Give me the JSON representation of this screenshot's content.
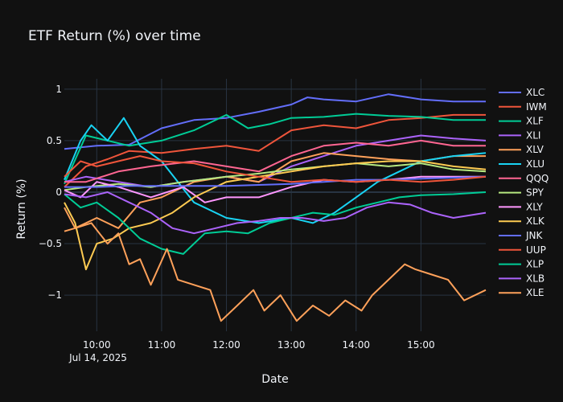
{
  "chart_data": {
    "type": "line",
    "title": "ETF Return (%) over time",
    "xlabel": "Date",
    "ylabel": "Return (%)",
    "date_annotation": "Jul 14, 2025",
    "x_ticks": [
      "10:00",
      "11:00",
      "12:00",
      "13:00",
      "14:00",
      "15:00"
    ],
    "x_tick_minutes": [
      600,
      660,
      720,
      780,
      840,
      900
    ],
    "x_range_minutes": [
      570,
      960
    ],
    "ylim": [
      -1.35,
      1.1
    ],
    "y_ticks": [
      1,
      0.5,
      0,
      -0.5,
      -1
    ],
    "y_tick_labels": [
      "1",
      "0.5",
      "0",
      "−0.5",
      "−1"
    ],
    "grid": true,
    "legend_position": "right",
    "background": "#111111",
    "grid_color": "#283442",
    "series": [
      {
        "name": "XLC",
        "color": "#636efa",
        "values": [
          [
            570,
            0.42
          ],
          [
            600,
            0.45
          ],
          [
            630,
            0.46
          ],
          [
            660,
            0.62
          ],
          [
            690,
            0.7
          ],
          [
            720,
            0.72
          ],
          [
            750,
            0.78
          ],
          [
            780,
            0.85
          ],
          [
            795,
            0.92
          ],
          [
            810,
            0.9
          ],
          [
            840,
            0.88
          ],
          [
            870,
            0.95
          ],
          [
            900,
            0.9
          ],
          [
            930,
            0.88
          ],
          [
            960,
            0.88
          ]
        ]
      },
      {
        "name": "IWM",
        "color": "#ef553b",
        "values": [
          [
            570,
            0.05
          ],
          [
            590,
            0.25
          ],
          [
            610,
            0.32
          ],
          [
            630,
            0.4
          ],
          [
            660,
            0.38
          ],
          [
            690,
            0.42
          ],
          [
            720,
            0.45
          ],
          [
            750,
            0.4
          ],
          [
            780,
            0.6
          ],
          [
            810,
            0.65
          ],
          [
            840,
            0.62
          ],
          [
            870,
            0.7
          ],
          [
            900,
            0.72
          ],
          [
            930,
            0.75
          ],
          [
            960,
            0.75
          ]
        ]
      },
      {
        "name": "XLF",
        "color": "#00cc96",
        "values": [
          [
            570,
            0.08
          ],
          [
            590,
            0.55
          ],
          [
            610,
            0.5
          ],
          [
            630,
            0.45
          ],
          [
            660,
            0.5
          ],
          [
            690,
            0.6
          ],
          [
            720,
            0.75
          ],
          [
            740,
            0.62
          ],
          [
            760,
            0.66
          ],
          [
            780,
            0.72
          ],
          [
            810,
            0.73
          ],
          [
            840,
            0.76
          ],
          [
            870,
            0.74
          ],
          [
            900,
            0.73
          ],
          [
            930,
            0.7
          ],
          [
            960,
            0.7
          ]
        ]
      },
      {
        "name": "XLI",
        "color": "#ab63fa",
        "values": [
          [
            570,
            0.1
          ],
          [
            590,
            0.15
          ],
          [
            620,
            0.1
          ],
          [
            650,
            0.05
          ],
          [
            680,
            0.1
          ],
          [
            720,
            0.15
          ],
          [
            750,
            0.1
          ],
          [
            780,
            0.25
          ],
          [
            810,
            0.35
          ],
          [
            840,
            0.45
          ],
          [
            870,
            0.5
          ],
          [
            900,
            0.55
          ],
          [
            930,
            0.52
          ],
          [
            960,
            0.5
          ]
        ]
      },
      {
        "name": "XLV",
        "color": "#ffa15a",
        "values": [
          [
            570,
            -0.38
          ],
          [
            580,
            -0.35
          ],
          [
            600,
            -0.25
          ],
          [
            620,
            -0.35
          ],
          [
            640,
            -0.1
          ],
          [
            660,
            -0.05
          ],
          [
            690,
            0.1
          ],
          [
            720,
            0.15
          ],
          [
            750,
            0.1
          ],
          [
            780,
            0.3
          ],
          [
            810,
            0.38
          ],
          [
            840,
            0.35
          ],
          [
            870,
            0.32
          ],
          [
            900,
            0.3
          ],
          [
            930,
            0.35
          ],
          [
            960,
            0.35
          ]
        ]
      },
      {
        "name": "XLU",
        "color": "#19d3f3",
        "values": [
          [
            570,
            0.12
          ],
          [
            585,
            0.5
          ],
          [
            595,
            0.65
          ],
          [
            610,
            0.5
          ],
          [
            625,
            0.72
          ],
          [
            640,
            0.45
          ],
          [
            660,
            0.3
          ],
          [
            690,
            -0.1
          ],
          [
            720,
            -0.25
          ],
          [
            750,
            -0.3
          ],
          [
            780,
            -0.25
          ],
          [
            800,
            -0.3
          ],
          [
            820,
            -0.2
          ],
          [
            840,
            -0.05
          ],
          [
            860,
            0.1
          ],
          [
            880,
            0.2
          ],
          [
            900,
            0.3
          ],
          [
            930,
            0.35
          ],
          [
            960,
            0.38
          ]
        ]
      },
      {
        "name": "QQQ",
        "color": "#ff6692",
        "values": [
          [
            570,
            0.1
          ],
          [
            590,
            0.1
          ],
          [
            620,
            0.2
          ],
          [
            650,
            0.25
          ],
          [
            690,
            0.3
          ],
          [
            720,
            0.25
          ],
          [
            750,
            0.2
          ],
          [
            780,
            0.35
          ],
          [
            810,
            0.45
          ],
          [
            840,
            0.48
          ],
          [
            870,
            0.45
          ],
          [
            900,
            0.5
          ],
          [
            930,
            0.45
          ],
          [
            960,
            0.45
          ]
        ]
      },
      {
        "name": "SPY",
        "color": "#b6e880",
        "values": [
          [
            570,
            0.02
          ],
          [
            590,
            0.05
          ],
          [
            620,
            0.08
          ],
          [
            650,
            0.05
          ],
          [
            680,
            0.1
          ],
          [
            720,
            0.15
          ],
          [
            750,
            0.18
          ],
          [
            780,
            0.22
          ],
          [
            810,
            0.25
          ],
          [
            840,
            0.28
          ],
          [
            870,
            0.25
          ],
          [
            900,
            0.28
          ],
          [
            930,
            0.22
          ],
          [
            960,
            0.2
          ]
        ]
      },
      {
        "name": "XLY",
        "color": "#ff97ff",
        "values": [
          [
            570,
            0.02
          ],
          [
            585,
            -0.05
          ],
          [
            600,
            0.1
          ],
          [
            620,
            0.05
          ],
          [
            650,
            -0.05
          ],
          [
            680,
            0.05
          ],
          [
            700,
            -0.1
          ],
          [
            720,
            -0.05
          ],
          [
            750,
            -0.05
          ],
          [
            780,
            0.05
          ],
          [
            810,
            0.12
          ],
          [
            840,
            0.1
          ],
          [
            870,
            0.12
          ],
          [
            900,
            0.15
          ],
          [
            930,
            0.15
          ],
          [
            960,
            0.15
          ]
        ]
      },
      {
        "name": "XLK",
        "color": "#fecb52",
        "values": [
          [
            570,
            -0.1
          ],
          [
            580,
            -0.3
          ],
          [
            590,
            -0.75
          ],
          [
            600,
            -0.5
          ],
          [
            615,
            -0.45
          ],
          [
            630,
            -0.35
          ],
          [
            650,
            -0.3
          ],
          [
            670,
            -0.2
          ],
          [
            690,
            -0.05
          ],
          [
            720,
            0.1
          ],
          [
            750,
            0.15
          ],
          [
            780,
            0.2
          ],
          [
            810,
            0.25
          ],
          [
            840,
            0.28
          ],
          [
            870,
            0.3
          ],
          [
            900,
            0.3
          ],
          [
            930,
            0.25
          ],
          [
            960,
            0.22
          ]
        ]
      },
      {
        "name": "JNK",
        "color": "#636efa",
        "values": [
          [
            570,
            0.05
          ],
          [
            600,
            0.05
          ],
          [
            630,
            0.06
          ],
          [
            660,
            0.06
          ],
          [
            690,
            0.06
          ],
          [
            720,
            0.06
          ],
          [
            750,
            0.07
          ],
          [
            780,
            0.08
          ],
          [
            810,
            0.1
          ],
          [
            840,
            0.12
          ],
          [
            870,
            0.12
          ],
          [
            900,
            0.13
          ],
          [
            930,
            0.14
          ],
          [
            960,
            0.15
          ]
        ]
      },
      {
        "name": "UUP",
        "color": "#ef553b",
        "values": [
          [
            570,
            0.15
          ],
          [
            585,
            0.3
          ],
          [
            600,
            0.25
          ],
          [
            620,
            0.3
          ],
          [
            640,
            0.35
          ],
          [
            660,
            0.3
          ],
          [
            690,
            0.28
          ],
          [
            720,
            0.2
          ],
          [
            750,
            0.15
          ],
          [
            780,
            0.1
          ],
          [
            810,
            0.12
          ],
          [
            840,
            0.1
          ],
          [
            870,
            0.12
          ],
          [
            900,
            0.1
          ],
          [
            930,
            0.12
          ],
          [
            960,
            0.15
          ]
        ]
      },
      {
        "name": "XLP",
        "color": "#00cc96",
        "values": [
          [
            570,
            -0.02
          ],
          [
            585,
            -0.15
          ],
          [
            600,
            -0.1
          ],
          [
            620,
            -0.25
          ],
          [
            640,
            -0.45
          ],
          [
            660,
            -0.55
          ],
          [
            680,
            -0.6
          ],
          [
            700,
            -0.4
          ],
          [
            720,
            -0.38
          ],
          [
            740,
            -0.4
          ],
          [
            760,
            -0.3
          ],
          [
            780,
            -0.25
          ],
          [
            800,
            -0.2
          ],
          [
            820,
            -0.22
          ],
          [
            840,
            -0.15
          ],
          [
            860,
            -0.1
          ],
          [
            880,
            -0.05
          ],
          [
            900,
            -0.03
          ],
          [
            930,
            -0.02
          ],
          [
            960,
            0.0
          ]
        ]
      },
      {
        "name": "XLB",
        "color": "#ab63fa",
        "values": [
          [
            570,
            -0.02
          ],
          [
            590,
            -0.05
          ],
          [
            610,
            0.0
          ],
          [
            630,
            -0.1
          ],
          [
            650,
            -0.2
          ],
          [
            670,
            -0.35
          ],
          [
            690,
            -0.4
          ],
          [
            710,
            -0.35
          ],
          [
            730,
            -0.3
          ],
          [
            750,
            -0.28
          ],
          [
            770,
            -0.25
          ],
          [
            790,
            -0.25
          ],
          [
            810,
            -0.28
          ],
          [
            830,
            -0.25
          ],
          [
            850,
            -0.15
          ],
          [
            870,
            -0.1
          ],
          [
            890,
            -0.12
          ],
          [
            910,
            -0.2
          ],
          [
            930,
            -0.25
          ],
          [
            960,
            -0.2
          ]
        ]
      },
      {
        "name": "XLE",
        "color": "#ffa15a",
        "values": [
          [
            570,
            -0.15
          ],
          [
            580,
            -0.35
          ],
          [
            595,
            -0.3
          ],
          [
            610,
            -0.5
          ],
          [
            620,
            -0.4
          ],
          [
            630,
            -0.7
          ],
          [
            640,
            -0.65
          ],
          [
            650,
            -0.9
          ],
          [
            665,
            -0.55
          ],
          [
            675,
            -0.85
          ],
          [
            690,
            -0.9
          ],
          [
            705,
            -0.95
          ],
          [
            715,
            -1.25
          ],
          [
            730,
            -1.1
          ],
          [
            745,
            -0.95
          ],
          [
            755,
            -1.15
          ],
          [
            770,
            -1.0
          ],
          [
            785,
            -1.25
          ],
          [
            800,
            -1.1
          ],
          [
            815,
            -1.2
          ],
          [
            830,
            -1.05
          ],
          [
            845,
            -1.15
          ],
          [
            855,
            -1.0
          ],
          [
            870,
            -0.85
          ],
          [
            885,
            -0.7
          ],
          [
            895,
            -0.75
          ],
          [
            910,
            -0.8
          ],
          [
            925,
            -0.85
          ],
          [
            940,
            -1.05
          ],
          [
            960,
            -0.95
          ]
        ]
      }
    ]
  }
}
